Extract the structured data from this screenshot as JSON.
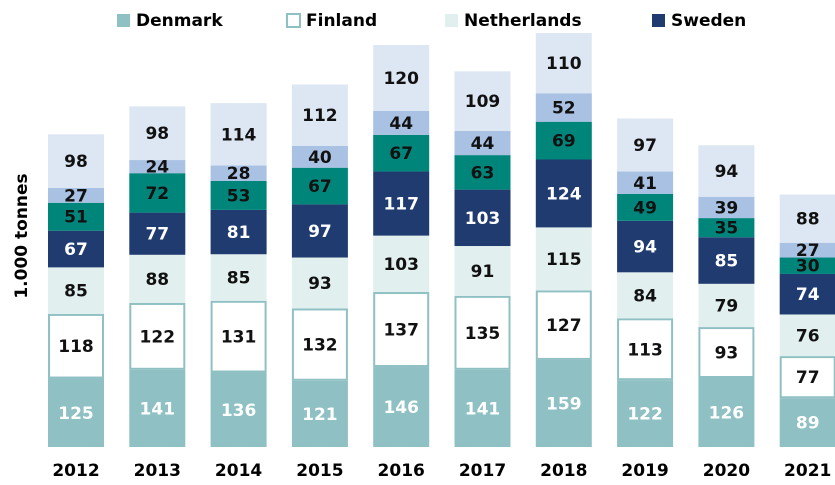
{
  "chart_data": {
    "type": "bar",
    "stacked": true,
    "y_label": "1.000 tonnes",
    "categories": [
      "2012",
      "2013",
      "2014",
      "2015",
      "2016",
      "2017",
      "2018",
      "2019",
      "2020",
      "2021"
    ],
    "series": [
      {
        "name": "Denmark",
        "color": "#8fc0c3",
        "label_color": "#ffffff",
        "values": [
          125,
          141,
          136,
          121,
          146,
          141,
          159,
          122,
          126,
          89
        ]
      },
      {
        "name": "Finland",
        "color": "#ffffff",
        "border": "#8fc0c3",
        "label_color": "#111111",
        "values": [
          118,
          122,
          131,
          132,
          137,
          135,
          127,
          113,
          93,
          77
        ]
      },
      {
        "name": "Netherlands",
        "color": "#e2efef",
        "label_color": "#111111",
        "values": [
          85,
          88,
          85,
          93,
          103,
          91,
          115,
          84,
          79,
          76
        ]
      },
      {
        "name": "Sweden",
        "color": "#1f3b70",
        "label_color": "#ffffff",
        "values": [
          67,
          77,
          81,
          97,
          117,
          103,
          124,
          94,
          85,
          74
        ]
      },
      {
        "color": "#00857a",
        "label_color": "#111111",
        "values": [
          51,
          72,
          53,
          67,
          67,
          63,
          69,
          49,
          35,
          30
        ]
      },
      {
        "color": "#a9c1e2",
        "label_color": "#111111",
        "values": [
          27,
          24,
          28,
          40,
          44,
          44,
          52,
          41,
          39,
          27
        ]
      },
      {
        "color": "#dde7f3",
        "label_color": "#111111",
        "values": [
          98,
          98,
          114,
          112,
          120,
          109,
          110,
          97,
          94,
          88
        ]
      }
    ]
  }
}
